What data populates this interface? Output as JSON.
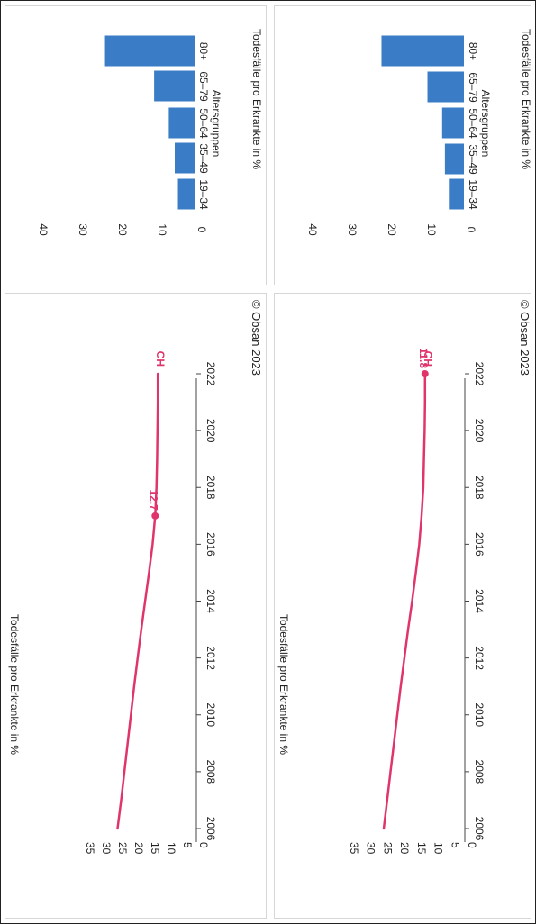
{
  "colors": {
    "trend": "#e0356b",
    "bar": "#3a7cc6",
    "text": "#222222",
    "panel_border": "#d6d6d6"
  },
  "credit": "© Obsan 2023",
  "chart_data": [
    {
      "id": "trend-top",
      "type": "line",
      "ylabel": "Todesfälle pro Erkrankte in %",
      "xlabel": "",
      "ylim": [
        0,
        35
      ],
      "yticks": [
        "0",
        "5",
        "10",
        "15",
        "20",
        "25",
        "30",
        "35"
      ],
      "xticks": [
        "2006",
        "2008",
        "2010",
        "2012",
        "2014",
        "2016",
        "2018",
        "2020",
        "2022"
      ],
      "x": [
        2006,
        2007,
        2008,
        2009,
        2010,
        2011,
        2012,
        2013,
        2014,
        2015,
        2016,
        2017,
        2018,
        2019,
        2020,
        2021,
        2022
      ],
      "series": [
        {
          "name": "CH",
          "values": [
            24.3,
            23.2,
            22.2,
            21.2,
            20.2,
            19.2,
            18.1,
            17.0,
            15.8,
            14.6,
            13.5,
            12.7,
            12.3,
            12.1,
            12.0,
            11.9,
            11.9
          ]
        }
      ],
      "highlight": {
        "x": 2017,
        "y": 12.7,
        "label": "12.7"
      },
      "end_label": "CH",
      "credit": "© Obsan 2023"
    },
    {
      "id": "age-top",
      "type": "bar",
      "ylabel": "Todesfälle pro Erkrankte in %",
      "xlabel": "Altersgruppen",
      "ylim": [
        0,
        45
      ],
      "yticks": [
        "0",
        "10",
        "20",
        "30",
        "40"
      ],
      "categories": [
        "19–34",
        "35–49",
        "50–64",
        "65–79",
        "80+"
      ],
      "values": [
        4.2,
        5.0,
        6.5,
        10.2,
        22.6
      ]
    },
    {
      "id": "trend-bottom",
      "type": "line",
      "ylabel": "Todesfälle pro Erkrankte in %",
      "xlabel": "",
      "ylim": [
        0,
        35
      ],
      "yticks": [
        "0",
        "5",
        "10",
        "15",
        "20",
        "25",
        "30",
        "35"
      ],
      "xticks": [
        "2006",
        "2008",
        "2010",
        "2012",
        "2014",
        "2016",
        "2018",
        "2020",
        "2022"
      ],
      "x": [
        2006,
        2007,
        2008,
        2009,
        2010,
        2011,
        2012,
        2013,
        2014,
        2015,
        2016,
        2017,
        2018,
        2019,
        2020,
        2021,
        2022
      ],
      "series": [
        {
          "name": "CH",
          "values": [
            24.0,
            23.0,
            22.0,
            21.0,
            20.0,
            19.0,
            17.9,
            16.8,
            15.6,
            14.5,
            13.5,
            12.8,
            12.3,
            12.1,
            11.9,
            11.8,
            11.8
          ]
        }
      ],
      "highlight": {
        "x": 2022,
        "y": 11.8,
        "label": "11.8"
      },
      "end_label": "CH",
      "credit": "© Obsan 2023"
    },
    {
      "id": "age-bottom",
      "type": "bar",
      "ylabel": "Todesfälle pro Erkrankte in %",
      "xlabel": "Altersgruppen",
      "ylim": [
        0,
        45
      ],
      "yticks": [
        "0",
        "10",
        "20",
        "30",
        "40"
      ],
      "categories": [
        "19–34",
        "35–49",
        "50–64",
        "65–79",
        "80+"
      ],
      "values": [
        3.8,
        4.8,
        5.5,
        9.2,
        20.8
      ]
    }
  ]
}
